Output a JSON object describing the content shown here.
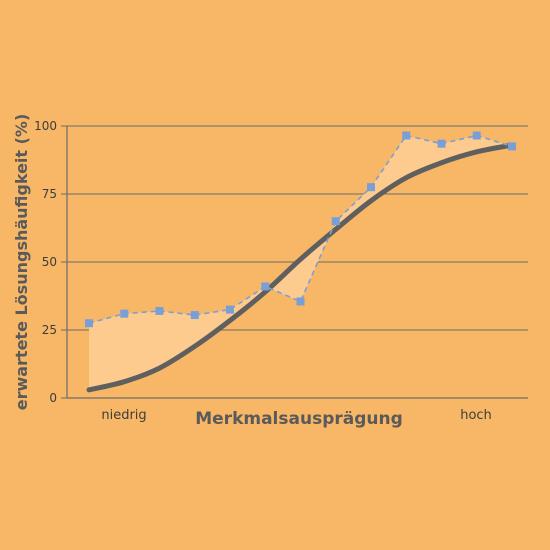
{
  "chart_data": {
    "type": "line",
    "xlabel": "Merkmalsausprägung",
    "ylabel": "erwartete Lösungshäufigkeit (%)",
    "x_end_labels": [
      "niedrig",
      "hoch"
    ],
    "yticks": [
      0,
      25,
      50,
      75,
      100
    ],
    "ylim": [
      0,
      100
    ],
    "xlim": [
      0,
      12
    ],
    "grid": true,
    "series": [
      {
        "style": "dashed-markers",
        "x": [
          0,
          1,
          2,
          3,
          4,
          5,
          6,
          7,
          8,
          9,
          10,
          11,
          12
        ],
        "values": [
          27.5,
          31,
          32,
          30.5,
          32.5,
          41,
          35.5,
          65,
          77.5,
          96.5,
          93.5,
          96.5,
          92.5
        ]
      },
      {
        "style": "solid-curve",
        "x": [
          0,
          1,
          2,
          3,
          4,
          5,
          6,
          7,
          8,
          9,
          10,
          11,
          12
        ],
        "values": [
          3,
          6,
          11,
          19,
          28.5,
          39,
          51,
          62,
          72.5,
          81,
          86.5,
          90.5,
          93
        ]
      }
    ],
    "colors": {
      "background": "#F7B766",
      "fill": "#FECB8F",
      "curve": "#5f5f5f",
      "markers": "#7A9FD6",
      "grid": "#6b6b6b"
    }
  }
}
